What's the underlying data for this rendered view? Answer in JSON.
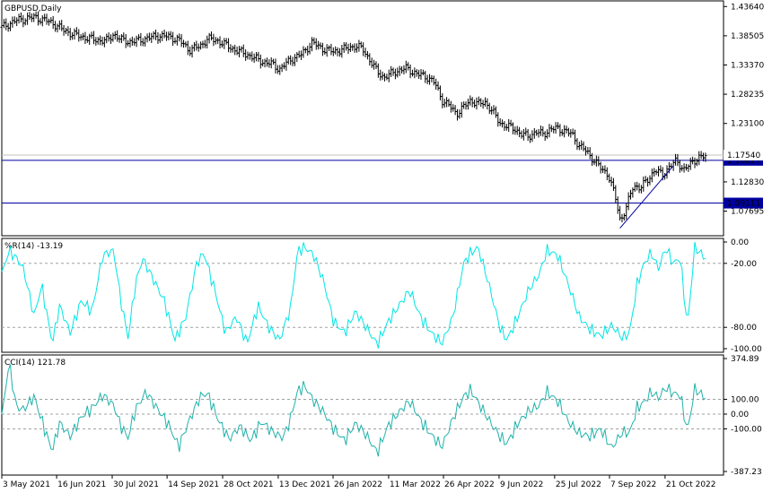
{
  "chart_data": [
    {
      "type": "bar",
      "title": "GBPUSD,Daily",
      "ylim": [
        1.04,
        1.44
      ],
      "y_ticks": [
        {
          "v": 1.4364,
          "label": "1.43640"
        },
        {
          "v": 1.38505,
          "label": "1.38505"
        },
        {
          "v": 1.3337,
          "label": "1.33370"
        },
        {
          "v": 1.28235,
          "label": "1.28235"
        },
        {
          "v": 1.231,
          "label": "1.23100"
        },
        {
          "v": 1.1283,
          "label": "1.12830"
        },
        {
          "v": 1.07695,
          "label": "1.07695"
        }
      ],
      "current_price": {
        "v": 1.1754,
        "label": "1.17540",
        "color": "#c0c0c0"
      },
      "horizontal_levels": [
        {
          "v": 1.16627,
          "label": "1.16627",
          "color": "#0000a0"
        },
        {
          "v": 1.09111,
          "label": "1.09111",
          "color": "#0000a0"
        }
      ],
      "trendline": {
        "from": [
          0.8565,
          1.047
        ],
        "to": [
          0.93,
          1.156
        ],
        "color": "#0000a0"
      },
      "series_points": [
        [
          0.0,
          1.4
        ],
        [
          0.02,
          1.412
        ],
        [
          0.045,
          1.418
        ],
        [
          0.07,
          1.408
        ],
        [
          0.085,
          1.395
        ],
        [
          0.1,
          1.387
        ],
        [
          0.115,
          1.382
        ],
        [
          0.13,
          1.378
        ],
        [
          0.145,
          1.376
        ],
        [
          0.155,
          1.388
        ],
        [
          0.165,
          1.378
        ],
        [
          0.18,
          1.374
        ],
        [
          0.2,
          1.38
        ],
        [
          0.215,
          1.385
        ],
        [
          0.23,
          1.384
        ],
        [
          0.245,
          1.378
        ],
        [
          0.26,
          1.36
        ],
        [
          0.275,
          1.367
        ],
        [
          0.285,
          1.38
        ],
        [
          0.3,
          1.376
        ],
        [
          0.32,
          1.362
        ],
        [
          0.34,
          1.352
        ],
        [
          0.36,
          1.34
        ],
        [
          0.375,
          1.335
        ],
        [
          0.385,
          1.326
        ],
        [
          0.4,
          1.343
        ],
        [
          0.415,
          1.352
        ],
        [
          0.43,
          1.373
        ],
        [
          0.445,
          1.362
        ],
        [
          0.46,
          1.357
        ],
        [
          0.475,
          1.362
        ],
        [
          0.49,
          1.367
        ],
        [
          0.5,
          1.362
        ],
        [
          0.51,
          1.342
        ],
        [
          0.52,
          1.322
        ],
        [
          0.53,
          1.312
        ],
        [
          0.545,
          1.322
        ],
        [
          0.56,
          1.328
        ],
        [
          0.575,
          1.318
        ],
        [
          0.59,
          1.312
        ],
        [
          0.6,
          1.302
        ],
        [
          0.61,
          1.272
        ],
        [
          0.62,
          1.262
        ],
        [
          0.63,
          1.248
        ],
        [
          0.64,
          1.26
        ],
        [
          0.65,
          1.272
        ],
        [
          0.66,
          1.265
        ],
        [
          0.67,
          1.268
        ],
        [
          0.68,
          1.252
        ],
        [
          0.69,
          1.232
        ],
        [
          0.7,
          1.226
        ],
        [
          0.71,
          1.222
        ],
        [
          0.72,
          1.212
        ],
        [
          0.73,
          1.208
        ],
        [
          0.74,
          1.216
        ],
        [
          0.75,
          1.212
        ],
        [
          0.76,
          1.221
        ],
        [
          0.77,
          1.222
        ],
        [
          0.78,
          1.218
        ],
        [
          0.79,
          1.212
        ],
        [
          0.8,
          1.192
        ],
        [
          0.81,
          1.182
        ],
        [
          0.82,
          1.167
        ],
        [
          0.83,
          1.152
        ],
        [
          0.84,
          1.142
        ],
        [
          0.85,
          1.102
        ],
        [
          0.857,
          1.06
        ],
        [
          0.865,
          1.082
        ],
        [
          0.875,
          1.122
        ],
        [
          0.885,
          1.118
        ],
        [
          0.895,
          1.132
        ],
        [
          0.905,
          1.15
        ],
        [
          0.915,
          1.14
        ],
        [
          0.925,
          1.155
        ],
        [
          0.935,
          1.165
        ],
        [
          0.945,
          1.15
        ],
        [
          0.955,
          1.16
        ],
        [
          0.965,
          1.172
        ]
      ]
    },
    {
      "type": "line",
      "title": "%R(14) -13.19",
      "color": "#00e5e5",
      "ylim": [
        -100,
        0
      ],
      "y_ticks": [
        {
          "v": 0,
          "label": "0.00"
        },
        {
          "v": -20,
          "label": "-20.00"
        },
        {
          "v": -80,
          "label": "-80.00"
        },
        {
          "v": -100,
          "label": "-100.00"
        }
      ],
      "levels": [
        -20,
        -80
      ],
      "series_points": [
        [
          0.0,
          -30
        ],
        [
          0.01,
          -8
        ],
        [
          0.02,
          -15
        ],
        [
          0.03,
          -25
        ],
        [
          0.045,
          -70
        ],
        [
          0.055,
          -40
        ],
        [
          0.07,
          -95
        ],
        [
          0.08,
          -60
        ],
        [
          0.095,
          -85
        ],
        [
          0.11,
          -55
        ],
        [
          0.125,
          -65
        ],
        [
          0.14,
          -12
        ],
        [
          0.155,
          -8
        ],
        [
          0.165,
          -55
        ],
        [
          0.175,
          -90
        ],
        [
          0.185,
          -40
        ],
        [
          0.195,
          -15
        ],
        [
          0.21,
          -35
        ],
        [
          0.225,
          -55
        ],
        [
          0.24,
          -92
        ],
        [
          0.255,
          -70
        ],
        [
          0.27,
          -20
        ],
        [
          0.28,
          -10
        ],
        [
          0.295,
          -45
        ],
        [
          0.31,
          -85
        ],
        [
          0.325,
          -70
        ],
        [
          0.34,
          -95
        ],
        [
          0.355,
          -60
        ],
        [
          0.37,
          -80
        ],
        [
          0.385,
          -92
        ],
        [
          0.4,
          -62
        ],
        [
          0.41,
          -8
        ],
        [
          0.42,
          -5
        ],
        [
          0.432,
          -12
        ],
        [
          0.445,
          -35
        ],
        [
          0.46,
          -75
        ],
        [
          0.475,
          -85
        ],
        [
          0.49,
          -65
        ],
        [
          0.505,
          -80
        ],
        [
          0.52,
          -96
        ],
        [
          0.535,
          -75
        ],
        [
          0.55,
          -60
        ],
        [
          0.565,
          -45
        ],
        [
          0.58,
          -70
        ],
        [
          0.595,
          -85
        ],
        [
          0.61,
          -95
        ],
        [
          0.625,
          -70
        ],
        [
          0.64,
          -20
        ],
        [
          0.65,
          -10
        ],
        [
          0.66,
          -5
        ],
        [
          0.675,
          -40
        ],
        [
          0.69,
          -80
        ],
        [
          0.7,
          -92
        ],
        [
          0.715,
          -70
        ],
        [
          0.73,
          -45
        ],
        [
          0.745,
          -30
        ],
        [
          0.755,
          -8
        ],
        [
          0.77,
          -12
        ],
        [
          0.785,
          -40
        ],
        [
          0.8,
          -70
        ],
        [
          0.815,
          -82
        ],
        [
          0.83,
          -88
        ],
        [
          0.845,
          -78
        ],
        [
          0.86,
          -90
        ],
        [
          0.87,
          -85
        ],
        [
          0.88,
          -40
        ],
        [
          0.89,
          -20
        ],
        [
          0.9,
          -10
        ],
        [
          0.91,
          -25
        ],
        [
          0.92,
          -5
        ],
        [
          0.93,
          -20
        ],
        [
          0.94,
          -15
        ],
        [
          0.95,
          -80
        ],
        [
          0.96,
          -5
        ],
        [
          0.975,
          -15
        ]
      ]
    },
    {
      "type": "line",
      "title": "CCI(14) 121.78",
      "color": "#20b2aa",
      "ylim": [
        -387.23,
        374.89
      ],
      "y_ticks": [
        {
          "v": 374.89,
          "label": "374.89"
        },
        {
          "v": 100,
          "label": "100.00"
        },
        {
          "v": 0,
          "label": "0.00"
        },
        {
          "v": -100,
          "label": "-100.00"
        },
        {
          "v": -387.23,
          "label": "-387.23"
        }
      ],
      "levels": [
        100,
        0,
        -100
      ],
      "series_points": [
        [
          0.0,
          -20
        ],
        [
          0.01,
          350
        ],
        [
          0.02,
          50
        ],
        [
          0.03,
          30
        ],
        [
          0.045,
          120
        ],
        [
          0.055,
          -40
        ],
        [
          0.07,
          -250
        ],
        [
          0.08,
          -60
        ],
        [
          0.095,
          -150
        ],
        [
          0.11,
          -20
        ],
        [
          0.125,
          40
        ],
        [
          0.14,
          130
        ],
        [
          0.155,
          60
        ],
        [
          0.165,
          -80
        ],
        [
          0.175,
          -160
        ],
        [
          0.185,
          30
        ],
        [
          0.2,
          150
        ],
        [
          0.215,
          40
        ],
        [
          0.23,
          -60
        ],
        [
          0.245,
          -220
        ],
        [
          0.26,
          -40
        ],
        [
          0.275,
          120
        ],
        [
          0.285,
          140
        ],
        [
          0.3,
          -40
        ],
        [
          0.315,
          -170
        ],
        [
          0.33,
          -80
        ],
        [
          0.345,
          -180
        ],
        [
          0.36,
          -50
        ],
        [
          0.375,
          -120
        ],
        [
          0.39,
          -160
        ],
        [
          0.4,
          -30
        ],
        [
          0.41,
          160
        ],
        [
          0.42,
          190
        ],
        [
          0.432,
          90
        ],
        [
          0.445,
          20
        ],
        [
          0.46,
          -100
        ],
        [
          0.475,
          -180
        ],
        [
          0.49,
          -60
        ],
        [
          0.505,
          -140
        ],
        [
          0.52,
          -260
        ],
        [
          0.535,
          -80
        ],
        [
          0.55,
          10
        ],
        [
          0.565,
          90
        ],
        [
          0.58,
          -40
        ],
        [
          0.595,
          -140
        ],
        [
          0.61,
          -220
        ],
        [
          0.625,
          -30
        ],
        [
          0.64,
          120
        ],
        [
          0.65,
          160
        ],
        [
          0.66,
          80
        ],
        [
          0.675,
          -40
        ],
        [
          0.69,
          -150
        ],
        [
          0.7,
          -200
        ],
        [
          0.715,
          -60
        ],
        [
          0.73,
          20
        ],
        [
          0.745,
          60
        ],
        [
          0.755,
          150
        ],
        [
          0.77,
          90
        ],
        [
          0.785,
          -50
        ],
        [
          0.8,
          -130
        ],
        [
          0.815,
          -150
        ],
        [
          0.83,
          -100
        ],
        [
          0.845,
          -230
        ],
        [
          0.86,
          -120
        ],
        [
          0.87,
          -130
        ],
        [
          0.88,
          40
        ],
        [
          0.89,
          80
        ],
        [
          0.9,
          150
        ],
        [
          0.91,
          110
        ],
        [
          0.92,
          180
        ],
        [
          0.93,
          140
        ],
        [
          0.94,
          130
        ],
        [
          0.95,
          -120
        ],
        [
          0.96,
          170
        ],
        [
          0.975,
          110
        ]
      ]
    }
  ],
  "x_axis": {
    "labels": [
      {
        "pos": 0.0,
        "label": "3 May 2021"
      },
      {
        "pos": 0.076,
        "label": "16 Jun 2021"
      },
      {
        "pos": 0.153,
        "label": "30 Jul 2021"
      },
      {
        "pos": 0.229,
        "label": "14 Sep 2021"
      },
      {
        "pos": 0.306,
        "label": "28 Oct 2021"
      },
      {
        "pos": 0.383,
        "label": "13 Dec 2021"
      },
      {
        "pos": 0.459,
        "label": "26 Jan 2022"
      },
      {
        "pos": 0.536,
        "label": "11 Mar 2022"
      },
      {
        "pos": 0.612,
        "label": "26 Apr 2022"
      },
      {
        "pos": 0.689,
        "label": "9 Jun 2022"
      },
      {
        "pos": 0.766,
        "label": "25 Jul 2022"
      },
      {
        "pos": 0.842,
        "label": "7 Sep 2022"
      },
      {
        "pos": 0.919,
        "label": "21 Oct 2022"
      }
    ]
  }
}
